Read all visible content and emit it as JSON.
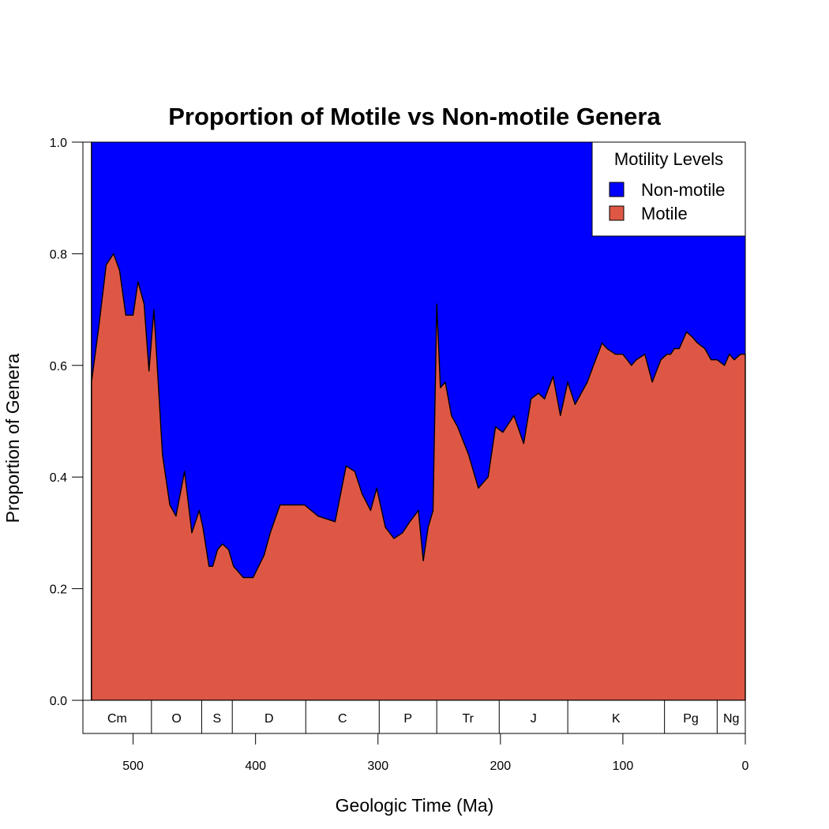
{
  "colors": {
    "non_motile": "#0000ff",
    "motile": "#de5745",
    "outline": "#000000",
    "background": "#ffffff"
  },
  "chart_data": {
    "type": "area",
    "stacked": true,
    "title": "Proportion of Motile vs Non-motile Genera",
    "xlabel": "Geologic Time (Ma)",
    "ylabel": "Proportion of Genera",
    "xlim": [
      541,
      0
    ],
    "ylim": [
      0,
      1
    ],
    "x_reversed": true,
    "xticks": [
      {
        "value": 500,
        "label": "500"
      },
      {
        "value": 400,
        "label": "400"
      },
      {
        "value": 300,
        "label": "300"
      },
      {
        "value": 200,
        "label": "200"
      },
      {
        "value": 100,
        "label": "100"
      },
      {
        "value": 0,
        "label": "0"
      }
    ],
    "yticks": [
      {
        "value": 0.0,
        "label": "0.0"
      },
      {
        "value": 0.2,
        "label": "0.2"
      },
      {
        "value": 0.4,
        "label": "0.4"
      },
      {
        "value": 0.6,
        "label": "0.6"
      },
      {
        "value": 0.8,
        "label": "0.8"
      },
      {
        "value": 1.0,
        "label": "1.0"
      }
    ],
    "legend": {
      "title": "Motility Levels",
      "position": "top-right",
      "entries": [
        "Non-motile",
        "Motile"
      ]
    },
    "series": [
      {
        "name": "Non-motile",
        "color": "#0000ff",
        "values": "1 - Motile"
      },
      {
        "name": "Motile",
        "color": "#de5745"
      }
    ],
    "x": [
      534,
      528,
      522,
      516,
      511,
      506,
      500,
      496,
      491,
      487,
      483,
      476,
      470,
      465,
      458,
      452,
      446,
      443,
      438,
      435,
      431,
      427,
      422,
      418,
      410,
      402,
      393,
      388,
      380,
      372,
      360,
      349,
      335,
      326,
      319,
      313,
      306,
      301,
      294,
      287,
      280,
      274,
      267,
      263,
      259,
      255,
      252,
      249,
      245,
      240,
      235,
      226,
      218,
      210,
      204,
      198,
      189,
      181,
      175,
      169,
      164,
      157,
      151,
      145,
      139,
      134,
      129,
      124,
      117,
      113,
      106,
      100,
      93,
      89,
      82,
      76,
      69,
      64,
      61,
      58,
      54,
      48,
      43,
      39,
      33,
      28,
      23,
      17,
      13,
      9,
      4,
      1,
      0
    ],
    "motile": [
      0.57,
      0.67,
      0.78,
      0.8,
      0.77,
      0.69,
      0.69,
      0.75,
      0.71,
      0.59,
      0.7,
      0.44,
      0.35,
      0.33,
      0.41,
      0.3,
      0.34,
      0.31,
      0.24,
      0.24,
      0.27,
      0.28,
      0.27,
      0.24,
      0.22,
      0.22,
      0.26,
      0.3,
      0.35,
      0.35,
      0.35,
      0.33,
      0.32,
      0.42,
      0.41,
      0.37,
      0.34,
      0.38,
      0.31,
      0.29,
      0.3,
      0.32,
      0.34,
      0.25,
      0.31,
      0.34,
      0.71,
      0.56,
      0.57,
      0.51,
      0.49,
      0.44,
      0.38,
      0.4,
      0.49,
      0.48,
      0.51,
      0.46,
      0.54,
      0.55,
      0.54,
      0.58,
      0.51,
      0.57,
      0.53,
      0.55,
      0.57,
      0.6,
      0.64,
      0.63,
      0.62,
      0.62,
      0.6,
      0.61,
      0.62,
      0.57,
      0.61,
      0.62,
      0.62,
      0.63,
      0.63,
      0.66,
      0.65,
      0.64,
      0.63,
      0.61,
      0.61,
      0.6,
      0.62,
      0.61,
      0.62,
      0.62,
      0.62
    ],
    "periods": [
      {
        "label": "Cm",
        "start": 541,
        "end": 485
      },
      {
        "label": "O",
        "start": 485,
        "end": 444
      },
      {
        "label": "S",
        "start": 444,
        "end": 419
      },
      {
        "label": "D",
        "start": 419,
        "end": 359
      },
      {
        "label": "C",
        "start": 359,
        "end": 299
      },
      {
        "label": "P",
        "start": 299,
        "end": 252
      },
      {
        "label": "Tr",
        "start": 252,
        "end": 201
      },
      {
        "label": "J",
        "start": 201,
        "end": 145
      },
      {
        "label": "K",
        "start": 145,
        "end": 66
      },
      {
        "label": "Pg",
        "start": 66,
        "end": 23
      },
      {
        "label": "Ng",
        "start": 23,
        "end": 0
      }
    ]
  }
}
